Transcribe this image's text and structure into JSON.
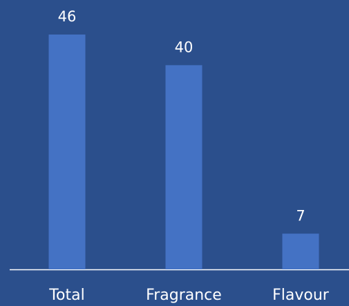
{
  "chart_data": {
    "type": "bar",
    "categories": [
      "Total",
      "Fragrance",
      "Flavour"
    ],
    "values": [
      46,
      40,
      7
    ],
    "color": "#4472c4"
  }
}
